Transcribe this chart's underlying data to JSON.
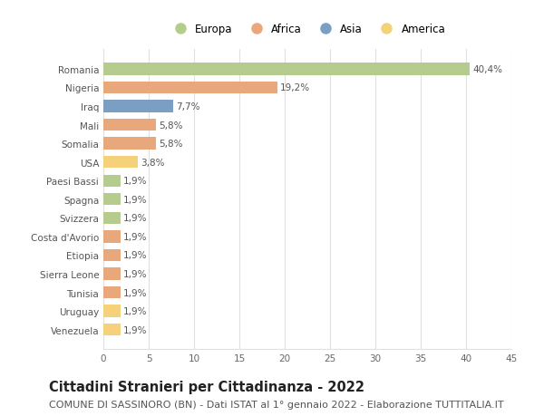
{
  "countries": [
    "Romania",
    "Nigeria",
    "Iraq",
    "Mali",
    "Somalia",
    "USA",
    "Paesi Bassi",
    "Spagna",
    "Svizzera",
    "Costa d'Avorio",
    "Etiopia",
    "Sierra Leone",
    "Tunisia",
    "Uruguay",
    "Venezuela"
  ],
  "values": [
    40.4,
    19.2,
    7.7,
    5.8,
    5.8,
    3.8,
    1.9,
    1.9,
    1.9,
    1.9,
    1.9,
    1.9,
    1.9,
    1.9,
    1.9
  ],
  "labels": [
    "40,4%",
    "19,2%",
    "7,7%",
    "5,8%",
    "5,8%",
    "3,8%",
    "1,9%",
    "1,9%",
    "1,9%",
    "1,9%",
    "1,9%",
    "1,9%",
    "1,9%",
    "1,9%",
    "1,9%"
  ],
  "continent": [
    "Europa",
    "Africa",
    "Asia",
    "Africa",
    "Africa",
    "America",
    "Europa",
    "Europa",
    "Europa",
    "Africa",
    "Africa",
    "Africa",
    "Africa",
    "America",
    "America"
  ],
  "colors": {
    "Europa": "#b5cc8e",
    "Africa": "#e8a87c",
    "Asia": "#7a9fc2",
    "America": "#f5d27a"
  },
  "legend_order": [
    "Europa",
    "Africa",
    "Asia",
    "America"
  ],
  "xlim": [
    0,
    45
  ],
  "xticks": [
    0,
    5,
    10,
    15,
    20,
    25,
    30,
    35,
    40,
    45
  ],
  "title": "Cittadini Stranieri per Cittadinanza - 2022",
  "subtitle": "COMUNE DI SASSINORO (BN) - Dati ISTAT al 1° gennaio 2022 - Elaborazione TUTTITALIA.IT",
  "background_color": "#ffffff",
  "grid_color": "#e0e0e0",
  "bar_height": 0.65,
  "title_fontsize": 10.5,
  "subtitle_fontsize": 8,
  "label_fontsize": 7.5,
  "tick_fontsize": 7.5,
  "legend_fontsize": 8.5
}
